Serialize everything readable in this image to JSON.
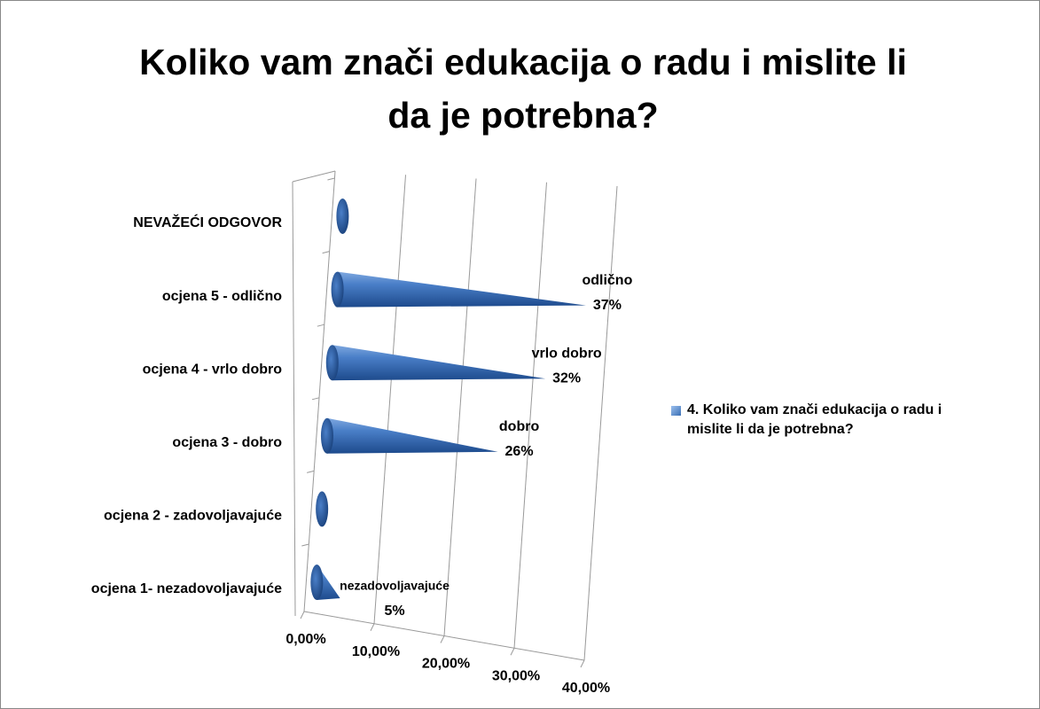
{
  "chart_data": {
    "type": "cone-bar",
    "title": "Koliko vam znači edukacija o radu i mislite li da je potrebna?",
    "categories": [
      "ocjena 1- nezadovoljavajuće",
      "ocjena 2 - zadovoljavajuće",
      "ocjena 3 - dobro",
      "ocjena 4 - vrlo dobro",
      "ocjena 5 - odlično",
      "NEVAŽEĆI ODGOVOR"
    ],
    "series": [
      {
        "name": "4. Koliko vam znači edukacija o radu i mislite li da je potrebna?",
        "color": "#3a6fb5",
        "values": [
          5,
          0,
          26,
          32,
          37,
          0
        ],
        "value_labels": [
          "5%",
          null,
          "26%",
          "32%",
          "37%",
          null
        ],
        "label_names": [
          "nezadovoljavajuće",
          null,
          "dobro",
          "vrlo dobro",
          "odlično",
          null
        ]
      }
    ],
    "xlim": [
      0,
      40
    ],
    "xticks": [
      {
        "value": 0,
        "label": "0,00%"
      },
      {
        "value": 10,
        "label": "10,00%"
      },
      {
        "value": 20,
        "label": "20,00%"
      },
      {
        "value": 30,
        "label": "30,00%"
      },
      {
        "value": 40,
        "label": "40,00%"
      }
    ],
    "grid": true,
    "legend": "right"
  }
}
